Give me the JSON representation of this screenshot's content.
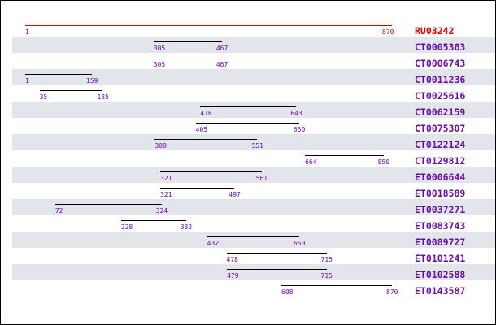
{
  "reference": {
    "id": "RU03242",
    "start": 1,
    "end": 870
  },
  "alignments": [
    {
      "id": "CT0005363",
      "start": 305,
      "end": 467
    },
    {
      "id": "CT0006743",
      "start": 305,
      "end": 467
    },
    {
      "id": "CT0011236",
      "start": 1,
      "end": 159
    },
    {
      "id": "CT0025616",
      "start": 35,
      "end": 185
    },
    {
      "id": "CT0062159",
      "start": 416,
      "end": 643
    },
    {
      "id": "CT0075307",
      "start": 405,
      "end": 650
    },
    {
      "id": "CT0122124",
      "start": 308,
      "end": 551
    },
    {
      "id": "CT0129812",
      "start": 664,
      "end": 850
    },
    {
      "id": "ET0006644",
      "start": 321,
      "end": 561
    },
    {
      "id": "ET0018589",
      "start": 321,
      "end": 497
    },
    {
      "id": "ET0037271",
      "start": 72,
      "end": 324
    },
    {
      "id": "ET0083743",
      "start": 228,
      "end": 382
    },
    {
      "id": "ET0089727",
      "start": 432,
      "end": 650
    },
    {
      "id": "ET0101241",
      "start": 478,
      "end": 715
    },
    {
      "id": "ET0102588",
      "start": 479,
      "end": 715
    },
    {
      "id": "ET0143587",
      "start": 608,
      "end": 870
    }
  ],
  "colors": {
    "reference": "#dd0000",
    "alignment_label": "#6a0dad",
    "row_shade": "#e2e6ea"
  }
}
